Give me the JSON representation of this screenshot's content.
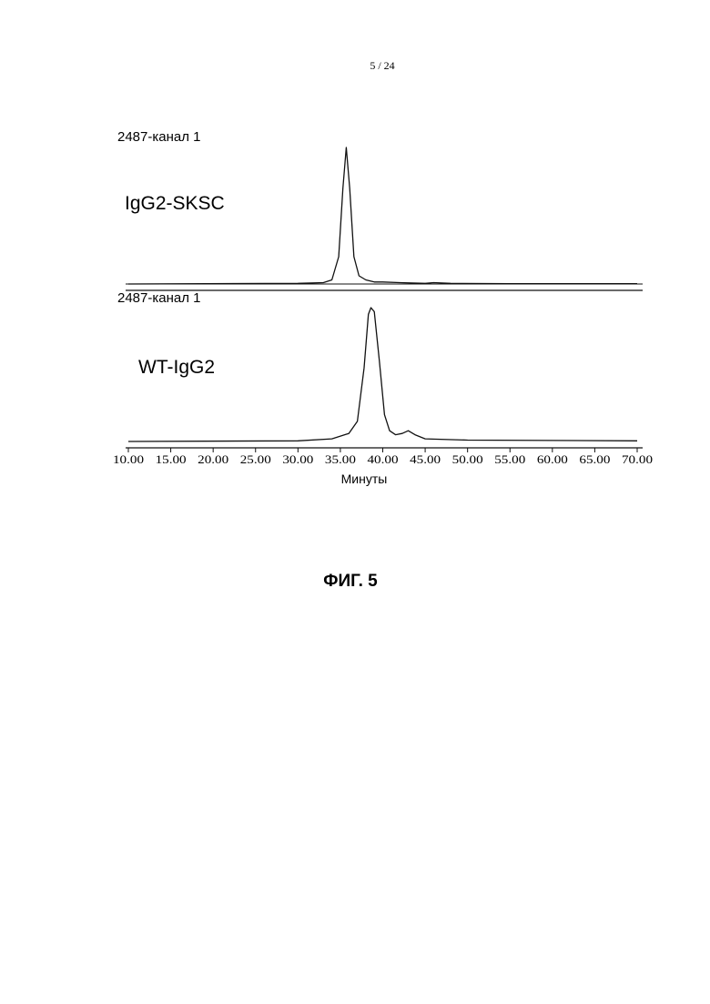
{
  "page_number": "5 / 24",
  "caption": "ФИГ. 5",
  "chart_data": [
    {
      "type": "line",
      "title": "2487-канал 1",
      "annotation": "IgG2-SKSC",
      "xlim": [
        10,
        70
      ],
      "ylim": [
        0,
        100
      ],
      "x": [
        10,
        30,
        33,
        34,
        34.8,
        35.3,
        35.7,
        36.1,
        36.6,
        37.2,
        38,
        39,
        40,
        42,
        45,
        46,
        48,
        55,
        70
      ],
      "series": [
        {
          "color": "#111111",
          "values": [
            0,
            0.5,
            1,
            3,
            20,
            70,
            100,
            70,
            20,
            6,
            3,
            1.5,
            1.5,
            1,
            0.5,
            1,
            0.5,
            0.3,
            0.3
          ]
        }
      ]
    },
    {
      "type": "line",
      "title": "2487-канал 1",
      "annotation": "WT-IgG2",
      "xlabel": "Минуты",
      "xlim": [
        10,
        70
      ],
      "ylim": [
        0,
        100
      ],
      "xticks": [
        {
          "value": 10,
          "label": "10.00"
        },
        {
          "value": 15,
          "label": "15.00"
        },
        {
          "value": 20,
          "label": "20.00"
        },
        {
          "value": 25,
          "label": "25.00"
        },
        {
          "value": 30,
          "label": "30.00"
        },
        {
          "value": 35,
          "label": "35.00"
        },
        {
          "value": 40,
          "label": "40.00"
        },
        {
          "value": 45,
          "label": "45.00"
        },
        {
          "value": 50,
          "label": "50.00"
        },
        {
          "value": 55,
          "label": "55.00"
        },
        {
          "value": 60,
          "label": "60.00"
        },
        {
          "value": 65,
          "label": "65.00"
        },
        {
          "value": 70,
          "label": "70.00"
        }
      ],
      "x": [
        10,
        30,
        34,
        36,
        37,
        37.8,
        38.3,
        38.6,
        39,
        39.6,
        40.2,
        40.8,
        41.5,
        42.3,
        43,
        43.8,
        45,
        50,
        70
      ],
      "series": [
        {
          "color": "#111111",
          "values": [
            0,
            0.5,
            2,
            6,
            15,
            55,
            95,
            100,
            97,
            60,
            20,
            8,
            5,
            6,
            8,
            5,
            2,
            1,
            0.5
          ]
        }
      ]
    }
  ]
}
